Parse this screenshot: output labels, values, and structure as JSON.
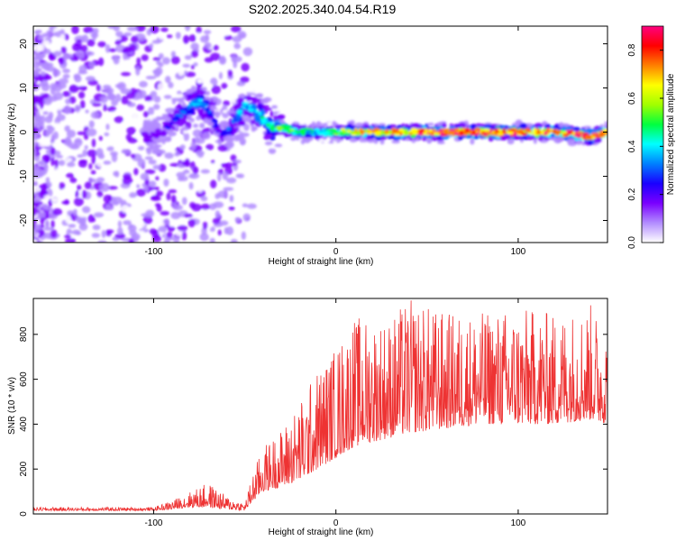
{
  "title": "S202.2025.340.04.54.R19",
  "chart_data": [
    {
      "type": "heatmap",
      "xlabel": "Height of straight line (km)",
      "ylabel": "Frequency (Hz)",
      "xlim": [
        -166,
        149
      ],
      "ylim": [
        -25,
        24
      ],
      "x_ticks": [
        "-100",
        "0",
        "100"
      ],
      "y_ticks": [
        "-20",
        "-10",
        "0",
        "10",
        "20"
      ],
      "colorbar": {
        "label": "Normalized spectral amplitude",
        "range": [
          0.0,
          0.9
        ],
        "ticks": [
          "0.0",
          "0.2",
          "0.4",
          "0.6",
          "0.8"
        ],
        "colors": [
          "#ffffff",
          "#b28cff",
          "#7a00ff",
          "#1a00ff",
          "#0080ff",
          "#00ffff",
          "#00ff40",
          "#a0ff00",
          "#ffff00",
          "#ff8000",
          "#ff0000",
          "#ff0080"
        ]
      },
      "ridge": {
        "x": [
          -100,
          -90,
          -80,
          -75,
          -70,
          -63,
          -58,
          -50,
          -45,
          -40,
          -35,
          -30,
          -20,
          -10,
          0,
          10,
          20,
          40,
          60,
          80,
          100,
          120,
          140,
          149
        ],
        "freq": [
          -1,
          2,
          6,
          7,
          5,
          -1,
          1,
          6,
          5,
          3,
          1,
          1,
          0,
          0,
          0,
          0,
          0,
          0,
          0,
          0,
          0,
          0,
          -1,
          0
        ],
        "amplitude": [
          0.2,
          0.25,
          0.35,
          0.4,
          0.3,
          0.2,
          0.3,
          0.4,
          0.4,
          0.45,
          0.45,
          0.5,
          0.45,
          0.4,
          0.5,
          0.65,
          0.7,
          0.75,
          0.8,
          0.8,
          0.75,
          0.8,
          0.85,
          0.7
        ]
      }
    },
    {
      "type": "line",
      "xlabel": "Height of straight line (km)",
      "ylabel": "SNR (10 * v/v)",
      "xlim": [
        -166,
        149
      ],
      "ylim": [
        0,
        960
      ],
      "x_ticks": [
        "-100",
        "0",
        "100"
      ],
      "y_ticks": [
        "0",
        "200",
        "400",
        "600",
        "800"
      ],
      "color": "#ee3333",
      "series": [
        {
          "name": "SNR",
          "envelope_x": [
            -166,
            -120,
            -100,
            -90,
            -80,
            -70,
            -60,
            -50,
            -45,
            -40,
            -30,
            -20,
            -10,
            0,
            10,
            20,
            30,
            40,
            60,
            80,
            100,
            120,
            140,
            149
          ],
          "envelope_low": [
            15,
            15,
            15,
            20,
            30,
            30,
            20,
            15,
            60,
            100,
            120,
            150,
            200,
            250,
            300,
            320,
            340,
            360,
            380,
            400,
            400,
            400,
            420,
            400
          ],
          "envelope_high": [
            30,
            30,
            30,
            60,
            100,
            140,
            80,
            50,
            200,
            300,
            380,
            500,
            650,
            750,
            880,
            880,
            880,
            960,
            900,
            900,
            920,
            900,
            940,
            820
          ]
        }
      ]
    }
  ]
}
